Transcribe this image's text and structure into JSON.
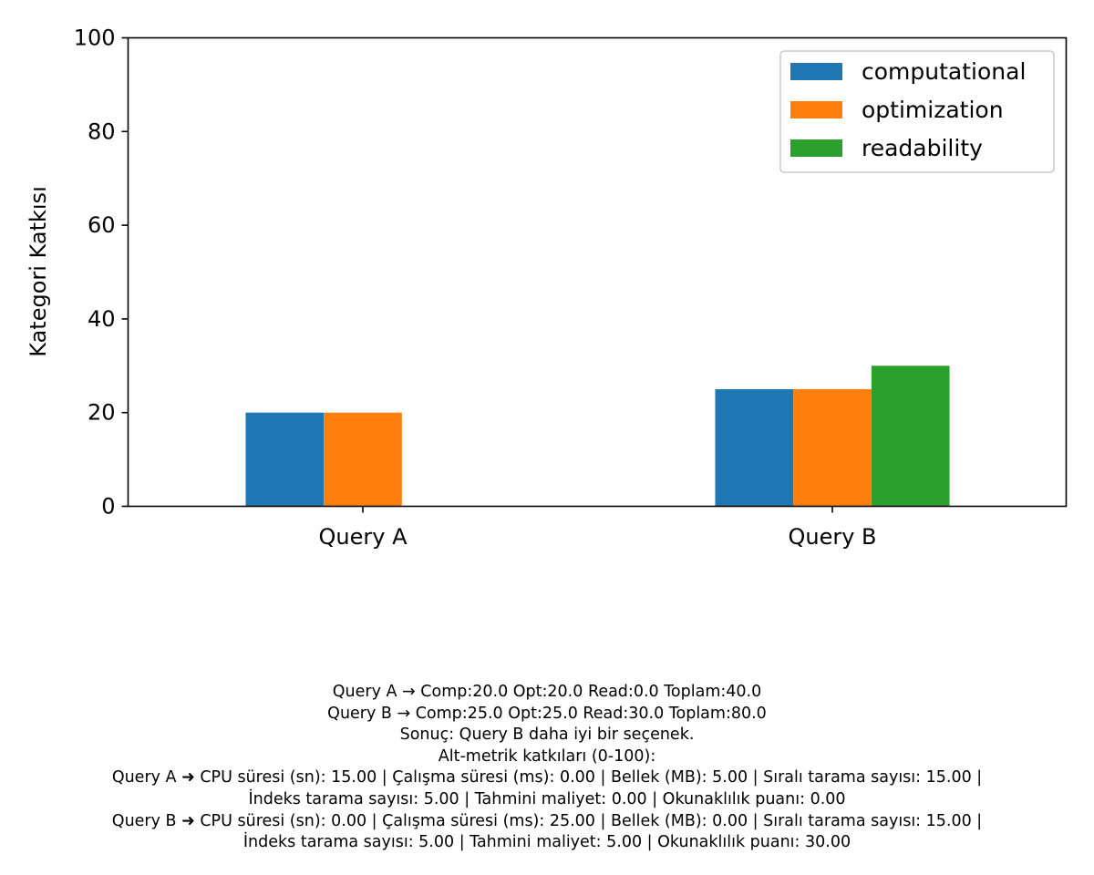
{
  "chart_data": {
    "type": "bar",
    "title": "",
    "xlabel": "",
    "ylabel": "Kategori Katkısı",
    "ylim": [
      0,
      100
    ],
    "yticks": [
      0,
      20,
      40,
      60,
      80,
      100
    ],
    "categories": [
      "Query A",
      "Query B"
    ],
    "series": [
      {
        "name": "computational",
        "color": "#1f77b4",
        "values": [
          20.0,
          25.0
        ]
      },
      {
        "name": "optimization",
        "color": "#ff7f0e",
        "values": [
          20.0,
          25.0
        ]
      },
      {
        "name": "readability",
        "color": "#2ca02c",
        "values": [
          0.0,
          30.0
        ]
      }
    ],
    "legend_position": "upper-right",
    "grid": false
  },
  "summary": {
    "line1": "Query A → Comp:20.0  Opt:20.0  Read:0.0  Toplam:40.0",
    "line2": "Query B → Comp:25.0  Opt:25.0  Read:30.0  Toplam:80.0",
    "line3": "Sonuç: Query B daha iyi bir seçenek.",
    "line4": "Alt-metrik katkıları (0-100):",
    "line5": "Query A ➜ CPU süresi (sn): 15.00  |  Çalışma süresi (ms): 0.00  |  Bellek (MB): 5.00  |  Sıralı tarama sayısı: 15.00  |",
    "line6": "İndeks tarama sayısı: 5.00  |  Tahmini maliyet: 0.00  |  Okunaklılık puanı: 0.00",
    "line7": "Query B ➜ CPU süresi (sn): 0.00  |  Çalışma süresi (ms): 25.00  |  Bellek (MB): 0.00  |  Sıralı tarama sayısı: 15.00  |",
    "line8": "İndeks tarama sayısı: 5.00  |  Tahmini maliyet: 5.00  |  Okunaklılık puanı: 30.00"
  }
}
